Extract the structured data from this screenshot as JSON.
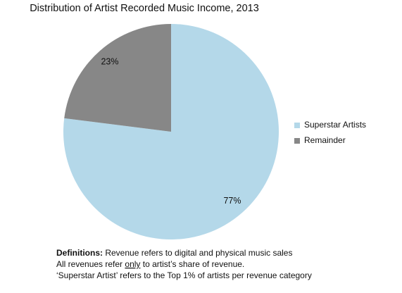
{
  "chart_data": {
    "type": "pie",
    "title": "Distribution of Artist Recorded Music Income, 2013",
    "categories": [
      "Superstar Artists",
      "Remainder"
    ],
    "values": [
      77,
      23
    ],
    "value_labels": [
      "77%",
      "23%"
    ],
    "colors": [
      "#b4d8e9",
      "#878787"
    ],
    "legend": "right",
    "footnote": [
      [
        "Definitions:",
        " Revenue refers to digital and physical music sales"
      ],
      [
        "All revenues refer ",
        "only",
        " to artist’s share of revenue."
      ],
      [
        "‘Superstar Artist’ refers to the Top 1% of artists per revenue category"
      ]
    ]
  }
}
